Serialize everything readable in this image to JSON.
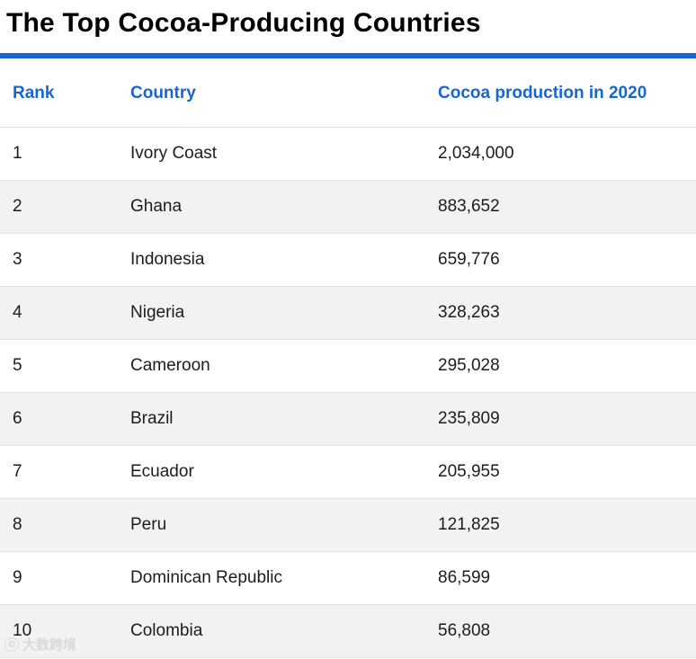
{
  "page": {
    "title": "The Top Cocoa-Producing Countries"
  },
  "colors": {
    "accent_blue": "#1767d2",
    "row_alt_gray": "#f2f2f2",
    "row_border": "#e2e2e2"
  },
  "table": {
    "headers": [
      "Rank",
      "Country",
      "Cocoa production in 2020"
    ],
    "rows": [
      {
        "rank": "1",
        "country": "Ivory Coast",
        "production": "2,034,000"
      },
      {
        "rank": "2",
        "country": "Ghana",
        "production": "883,652"
      },
      {
        "rank": "3",
        "country": "Indonesia",
        "production": "659,776"
      },
      {
        "rank": "4",
        "country": "Nigeria",
        "production": "328,263"
      },
      {
        "rank": "5",
        "country": "Cameroon",
        "production": "295,028"
      },
      {
        "rank": "6",
        "country": "Brazil",
        "production": "235,809"
      },
      {
        "rank": "7",
        "country": "Ecuador",
        "production": "205,955"
      },
      {
        "rank": "8",
        "country": "Peru",
        "production": "121,825"
      },
      {
        "rank": "9",
        "country": "Dominican Republic",
        "production": "86,599"
      },
      {
        "rank": "10",
        "country": "Colombia",
        "production": "56,808"
      }
    ]
  },
  "chart_data": {
    "type": "table",
    "title": "The Top Cocoa-Producing Countries",
    "columns": [
      "Rank",
      "Country",
      "Cocoa production in 2020"
    ],
    "rows": [
      [
        1,
        "Ivory Coast",
        2034000
      ],
      [
        2,
        "Ghana",
        883652
      ],
      [
        3,
        "Indonesia",
        659776
      ],
      [
        4,
        "Nigeria",
        328263
      ],
      [
        5,
        "Cameroon",
        295028
      ],
      [
        6,
        "Brazil",
        235809
      ],
      [
        7,
        "Ecuador",
        205955
      ],
      [
        8,
        "Peru",
        121825
      ],
      [
        9,
        "Dominican Republic",
        86599
      ],
      [
        10,
        "Colombia",
        56808
      ]
    ]
  },
  "watermark": {
    "text": "大数跨境"
  }
}
